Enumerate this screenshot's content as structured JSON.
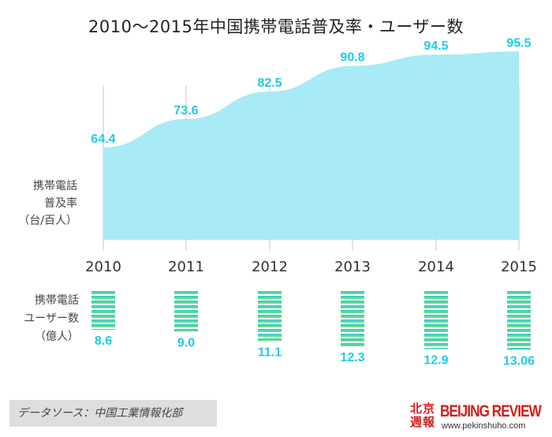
{
  "title": "2010～2015年中国携帯電話普及率・ユーザー数",
  "chart_data": [
    {
      "type": "area",
      "ylabel_lines": [
        "携帯電話",
        "普及率",
        "（台/百人）"
      ],
      "categories": [
        "2010",
        "2011",
        "2012",
        "2013",
        "2014",
        "2015"
      ],
      "values": [
        64.4,
        73.6,
        82.5,
        90.8,
        94.5,
        95.5
      ],
      "value_labels": [
        "64.4",
        "73.6",
        "82.5",
        "90.8",
        "94.5",
        "95.5"
      ],
      "grid": true,
      "colors": {
        "fill": "#a3e9f4",
        "label": "#1fcbe6",
        "grid": "#c9c9c9"
      }
    },
    {
      "type": "bar",
      "ylabel_lines": [
        "携帯電話",
        "ユーザー数",
        "（億人）"
      ],
      "categories": [
        "2010",
        "2011",
        "2012",
        "2013",
        "2014",
        "2015"
      ],
      "values": [
        8.6,
        9.0,
        11.1,
        12.3,
        12.9,
        13.06
      ],
      "value_labels": [
        "8.6",
        "9.0",
        "11.1",
        "12.3",
        "12.9",
        "13.06"
      ],
      "colors": {
        "top": "#1fcbe6",
        "bottom": "#86dc6e",
        "label": "#1fcbe6"
      }
    }
  ],
  "source": "データソース：中国工業情報化部",
  "logo": {
    "cn": "北京週報",
    "en": "BEIJING REVIEW",
    "url": "www.pekinshuho.com"
  }
}
